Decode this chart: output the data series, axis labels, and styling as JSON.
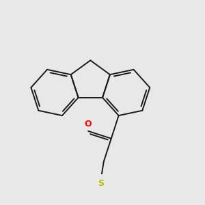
{
  "background_color": "#e8e8e8",
  "bond_color": "#1a1a1a",
  "O_color": "#ff0000",
  "S_color": "#bbbb00",
  "N_color": "#0000ee",
  "line_width": 1.4,
  "figsize": [
    3.0,
    3.0
  ],
  "dpi": 100
}
